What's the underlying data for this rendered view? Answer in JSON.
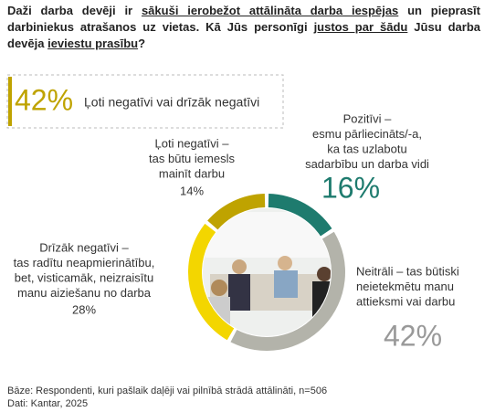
{
  "header": {
    "title_parts": [
      {
        "text": "Daži darba devēji ir ",
        "underline": false
      },
      {
        "text": "sākuši ierobežot attālināta darba iespējas",
        "underline": true
      },
      {
        "text": " un pieprasīt darbiniekus atrašanos uz vietas. Kā Jūs personīgi ",
        "underline": false
      },
      {
        "text": "justos par šādu",
        "underline": true
      },
      {
        "text": " Jūsu darba devēja ",
        "underline": false
      },
      {
        "text": "ieviestu prasību",
        "underline": true
      },
      {
        "text": "?",
        "underline": false
      }
    ]
  },
  "callout": {
    "value": "42%",
    "label": "Ļoti negatīvi vai drīzāk negatīvi"
  },
  "chart_data": {
    "type": "donut",
    "labels": [
      [
        "Pozitīvi –",
        "esmu pārliecināts/-a,",
        "ka tas uzlabotu",
        "sadarbību un darba vidi"
      ],
      [
        "Neitrāli – tas būtiski",
        "neietekmētu manu",
        "attieksmi vai darbu"
      ],
      [
        "Drīzāk negatīvi –",
        "tas radītu neapmierinātību,",
        "bet, visticamāk, neizraisītu",
        "manu aiziešanu no darba"
      ],
      [
        "Ļoti negatīvi –",
        "tas būtu iemesls",
        "mainīt darbu"
      ]
    ],
    "values": [
      16,
      42,
      28,
      14
    ],
    "value_labels": [
      "16%",
      "42%",
      "28%",
      "14%"
    ],
    "colors": [
      "#1e7b6e",
      "#b3b3aa",
      "#f3d600",
      "#bfa300"
    ]
  },
  "footer": {
    "lines": [
      "Bāze: Respondenti, kuri pašlaik daļēji vai pilnībā strādā attālināti, n=506",
      "Dati: Kantar, 2025"
    ]
  }
}
